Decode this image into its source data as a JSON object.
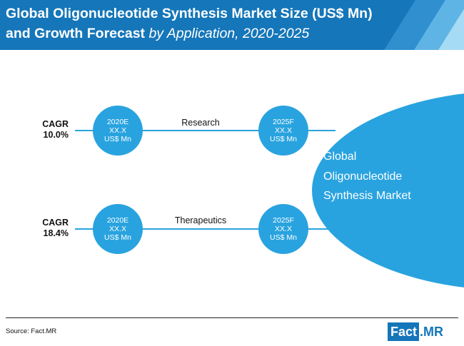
{
  "header": {
    "title_bold_1": "Global Oligonucleotide Synthesis Market Size (US$ Mn)",
    "title_bold_2": "and Growth Forecast",
    "title_italic": " by Application, 2020-2025"
  },
  "rows": [
    {
      "cagr_label": "CAGR",
      "cagr_value": "10.0%",
      "application": "Research",
      "start": {
        "year": "2020E",
        "value": "XX.X",
        "unit": "US$ Mn"
      },
      "end": {
        "year": "2025F",
        "value": "XX.X",
        "unit": "US$ Mn"
      }
    },
    {
      "cagr_label": "CAGR",
      "cagr_value": "18.4%",
      "application": "Therapeutics",
      "start": {
        "year": "2020E",
        "value": "XX.X",
        "unit": "US$ Mn"
      },
      "end": {
        "year": "2025F",
        "value": "XX.X",
        "unit": "US$ Mn"
      }
    }
  ],
  "market": {
    "line1": "Global",
    "line2": "Oligonucleotide",
    "line3": "Synthesis Market"
  },
  "footer": {
    "source": "Source: Fact.MR",
    "logo_fact": "Fact",
    "logo_mr": ".MR"
  },
  "colors": {
    "header_blue": "#1576b9",
    "circle_blue": "#29a3df"
  }
}
